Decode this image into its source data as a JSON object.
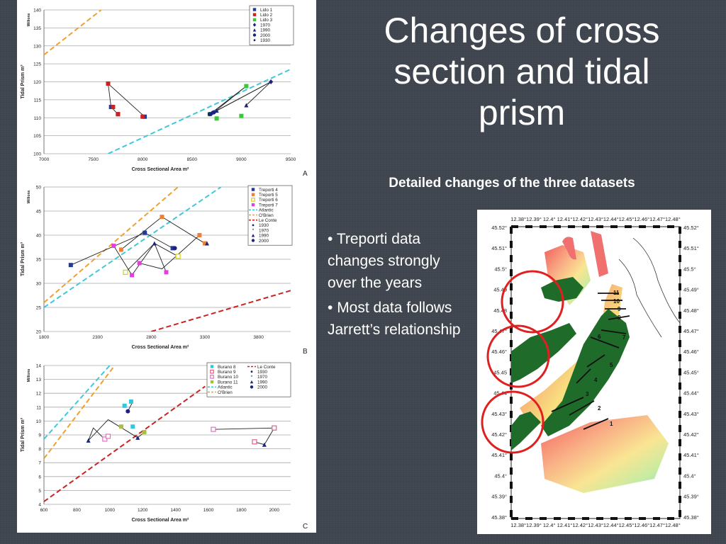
{
  "slide": {
    "title_lines": [
      "Changes of cross",
      "section and tidal",
      "prism"
    ],
    "subtitle": "Detailed changes of the three datasets",
    "bullets": [
      "Treporti data changes strongly over the years",
      "Most data follows Jarrett’s relationship"
    ]
  },
  "chart_data": [
    {
      "type": "scatter",
      "panel_label": "A",
      "xlabel": "Cross Sectional Area m²",
      "ylabel": "Tidal Prism m³",
      "yunit": "Millions",
      "xlim": [
        7000,
        9500
      ],
      "ylim": [
        100,
        140
      ],
      "xticks": [
        7000,
        7500,
        8000,
        8500,
        9000,
        9500
      ],
      "yticks": [
        100,
        105,
        110,
        115,
        120,
        125,
        130,
        135,
        140
      ],
      "grid": "horizontal",
      "legend": "top-right",
      "series": [
        {
          "name": "Lido 1",
          "color": "#1f3a9a",
          "marker": "square",
          "points": [
            [
              7650,
              119.5
            ],
            [
              7680,
              113
            ],
            [
              7750,
              111
            ],
            [
              8020,
              110.3
            ]
          ]
        },
        {
          "name": "Lido 2",
          "color": "#cc2222",
          "marker": "square",
          "points": [
            [
              7650,
              119.5
            ],
            [
              7700,
              113
            ],
            [
              7750,
              111
            ],
            [
              8000,
              110.3
            ]
          ]
        },
        {
          "name": "Lido 3",
          "color": "#33cc33",
          "marker": "square",
          "points": [
            [
              8680,
              111
            ],
            [
              8750,
              109.8
            ],
            [
              9000,
              110.5
            ],
            [
              9050,
              118.8
            ]
          ]
        },
        {
          "name": "1970",
          "color": "#1a237e",
          "marker": "diamond",
          "points": [
            [
              8700,
              111.2
            ],
            [
              9300,
              120
            ]
          ]
        },
        {
          "name": "1990",
          "color": "#1a237e",
          "marker": "triangle",
          "points": [
            [
              8750,
              112
            ],
            [
              9050,
              113.5
            ]
          ]
        },
        {
          "name": "2000",
          "color": "#1a237e",
          "marker": "circle",
          "points": [
            [
              8680,
              111
            ],
            [
              8720,
              111.5
            ]
          ]
        },
        {
          "name": "1930",
          "color": "#1a237e",
          "marker": "dot",
          "points": []
        }
      ],
      "reference_lines": [
        {
          "name": "Atlantic",
          "color": "#40c8d8",
          "points": [
            [
              7650,
              100
            ],
            [
              9500,
              123.5
            ]
          ]
        },
        {
          "name": "O'Brien",
          "color": "#f0a030",
          "points": [
            [
              7000,
              127.5
            ],
            [
              7580,
              140
            ]
          ]
        }
      ],
      "path_lines": [
        [
          [
            7650,
            119.5
          ],
          [
            7680,
            113
          ],
          [
            7750,
            111
          ]
        ],
        [
          [
            7650,
            119.5
          ],
          [
            8020,
            110.3
          ]
        ],
        [
          [
            8680,
            111
          ],
          [
            9050,
            118.8
          ],
          [
            8720,
            111.5
          ]
        ],
        [
          [
            8700,
            111.2
          ],
          [
            9300,
            120
          ],
          [
            9050,
            113.5
          ]
        ],
        [
          [
            8750,
            112
          ],
          [
            9300,
            120
          ]
        ]
      ]
    },
    {
      "type": "scatter",
      "panel_label": "B",
      "xlabel": "Cross Sectional Area m²",
      "ylabel": "Tidal Prism m³",
      "yunit": "Millions",
      "xlim": [
        1800,
        4100
      ],
      "ylim": [
        20,
        50
      ],
      "xticks": [
        1800,
        2300,
        2800,
        3300,
        3800
      ],
      "yticks": [
        20,
        25,
        30,
        35,
        40,
        45,
        50
      ],
      "grid": "horizontal",
      "legend": "top-right",
      "series": [
        {
          "name": "Treporti 4",
          "color": "#1f3a9a",
          "marker": "square",
          "points": [
            [
              2050,
              33.8
            ],
            [
              2740,
              40.5
            ],
            [
              3000,
              37.3
            ]
          ]
        },
        {
          "name": "Treporti 5",
          "color": "#f08030",
          "marker": "square",
          "points": [
            [
              2520,
              37
            ],
            [
              2900,
              43.8
            ],
            [
              3250,
              40
            ],
            [
              3300,
              38.3
            ]
          ]
        },
        {
          "name": "Treporti 6",
          "color": "#d4d020",
          "marker": "square-open",
          "points": [
            [
              2560,
              32.3
            ],
            [
              3050,
              35.6
            ]
          ]
        },
        {
          "name": "Treporti 7",
          "color": "#e040e0",
          "marker": "square",
          "points": [
            [
              2450,
              37.8
            ],
            [
              2620,
              31.7
            ],
            [
              2690,
              34.2
            ],
            [
              2940,
              32.3
            ]
          ]
        },
        {
          "name": "Atlantic",
          "color": "#40c8d8",
          "marker": "line-dash",
          "points": []
        },
        {
          "name": "O'Brien",
          "color": "#f0a030",
          "marker": "line-dash",
          "points": []
        },
        {
          "name": "Le Conte",
          "color": "#cc2222",
          "marker": "line-dash",
          "points": []
        },
        {
          "name": "1930",
          "color": "#1a237e",
          "marker": "dot",
          "points": []
        },
        {
          "name": "1970",
          "color": "#1a237e",
          "marker": "star",
          "points": []
        },
        {
          "name": "1990",
          "color": "#1a237e",
          "marker": "triangle",
          "points": [
            [
              2830,
              38.3
            ],
            [
              3320,
              38.3
            ]
          ]
        },
        {
          "name": "2000",
          "color": "#1a237e",
          "marker": "circle",
          "points": [
            [
              3020,
              37.3
            ]
          ]
        }
      ],
      "reference_lines": [
        {
          "name": "Atlantic",
          "color": "#40c8d8",
          "points": [
            [
              1800,
              25
            ],
            [
              3450,
              50
            ]
          ]
        },
        {
          "name": "O'Brien",
          "color": "#f0a030",
          "points": [
            [
              1800,
              26
            ],
            [
              3050,
              50
            ]
          ]
        },
        {
          "name": "Le Conte",
          "color": "#cc2222",
          "points": [
            [
              2800,
              20
            ],
            [
              4100,
              28.5
            ]
          ]
        }
      ],
      "path_lines": [
        [
          [
            2050,
            33.8
          ],
          [
            2740,
            40.5
          ],
          [
            3000,
            37.3
          ]
        ],
        [
          [
            2520,
            37
          ],
          [
            2900,
            43.8
          ],
          [
            3300,
            38.3
          ]
        ],
        [
          [
            2450,
            37.8
          ],
          [
            2620,
            31.7
          ],
          [
            2830,
            38.3
          ],
          [
            2940,
            32.3
          ]
        ],
        [
          [
            2560,
            32.3
          ],
          [
            2830,
            38.3
          ],
          [
            3050,
            35.6
          ]
        ],
        [
          [
            2690,
            34.2
          ],
          [
            2900,
            33
          ],
          [
            3250,
            40
          ]
        ]
      ]
    },
    {
      "type": "scatter",
      "panel_label": "C",
      "xlabel": "Cross Sectional Area m²",
      "ylabel": "Tidal Prism m³",
      "yunit": "Millions",
      "xlim": [
        600,
        2100
      ],
      "ylim": [
        4,
        14
      ],
      "xticks": [
        600,
        800,
        1000,
        1200,
        1400,
        1600,
        1800,
        2000
      ],
      "yticks": [
        4,
        5,
        6,
        7,
        8,
        9,
        10,
        11,
        12,
        13,
        14
      ],
      "grid": "horizontal",
      "legend": "top-right",
      "series": [
        {
          "name": "Burano 8",
          "color": "#30c8e0",
          "marker": "square",
          "points": [
            [
              1090,
              11.1
            ],
            [
              1130,
              11.4
            ],
            [
              1140,
              9.6
            ]
          ]
        },
        {
          "name": "Burano 9",
          "color": "#e06080",
          "marker": "square-open",
          "points": [
            [
              1880,
              8.5
            ],
            [
              2000,
              9.5
            ]
          ]
        },
        {
          "name": "Burano 10",
          "color": "#e070c0",
          "marker": "square-open",
          "points": [
            [
              1630,
              9.4
            ],
            [
              970,
              8.7
            ],
            [
              990,
              8.9
            ]
          ]
        },
        {
          "name": "Burano 11",
          "color": "#a8c040",
          "marker": "square",
          "points": [
            [
              1070,
              9.6
            ],
            [
              1210,
              9.2
            ]
          ]
        },
        {
          "name": "Atlantic",
          "color": "#40c8d8",
          "marker": "line-dash",
          "points": []
        },
        {
          "name": "O'Brien",
          "color": "#f0a030",
          "marker": "line-dash",
          "points": []
        },
        {
          "name": "Le Conte",
          "color": "#cc2222",
          "marker": "line-dash",
          "points": []
        },
        {
          "name": "1930",
          "color": "#1a237e",
          "marker": "dot",
          "points": []
        },
        {
          "name": "1970",
          "color": "#1a237e",
          "marker": "star",
          "points": []
        },
        {
          "name": "1990",
          "color": "#1a237e",
          "marker": "triangle",
          "points": [
            [
              870,
              8.6
            ],
            [
              1170,
              8.8
            ],
            [
              1940,
              8.3
            ]
          ]
        },
        {
          "name": "2000",
          "color": "#1a237e",
          "marker": "circle",
          "points": [
            [
              1110,
              10.7
            ]
          ]
        }
      ],
      "reference_lines": [
        {
          "name": "Atlantic",
          "color": "#40c8d8",
          "points": [
            [
              600,
              8.7
            ],
            [
              1000,
              14
            ]
          ]
        },
        {
          "name": "O'Brien",
          "color": "#f0a030",
          "points": [
            [
              600,
              7.3
            ],
            [
              1030,
              14
            ]
          ]
        },
        {
          "name": "Le Conte",
          "color": "#cc2222",
          "points": [
            [
              600,
              4.2
            ],
            [
              1580,
              12.5
            ]
          ]
        }
      ],
      "path_lines": [
        [
          [
            870,
            8.6
          ],
          [
            900,
            9.5
          ],
          [
            960,
            8.8
          ]
        ],
        [
          [
            990,
            10.1
          ],
          [
            1170,
            8.8
          ],
          [
            1210,
            9.2
          ]
        ],
        [
          [
            870,
            8.6
          ],
          [
            990,
            10.1
          ]
        ],
        [
          [
            1110,
            10.7
          ],
          [
            1140,
            11.4
          ]
        ],
        [
          [
            1630,
            9.4
          ],
          [
            2000,
            9.5
          ],
          [
            1940,
            8.3
          ],
          [
            1880,
            8.5
          ]
        ]
      ]
    }
  ],
  "map": {
    "top_ticks": "12.38°12.39° 12.4° 12.41°12.42°12.43°12.44°12.45°12.46°12.47°12.48°",
    "bottom_ticks": "12.38°12.39° 12.4° 12.41°12.42°12.43°12.44°12.45°12.46°12.47°12.48°",
    "left_lat": [
      "45.52°",
      "45.51°",
      "45.5°",
      "45.49",
      "45.48",
      "45.47°",
      "45.46°",
      "45.45",
      "45.44",
      "45.43°",
      "45.42°",
      "45.41°",
      "45.4°",
      "45.39°",
      "45.38°"
    ],
    "right_lat": [
      "45.52°",
      "45.51°",
      "45.5°",
      "45.49°",
      "45.48°",
      "45.47°",
      "45.46°",
      "45.45°",
      "45.44°",
      "45.43°",
      "45.42°",
      "45.41°",
      "45.4°",
      "45.39°",
      "45.38°"
    ],
    "section_labels": [
      "1",
      "2",
      "3",
      "4",
      "5",
      "6",
      "7",
      "8",
      "9",
      "10",
      "11"
    ]
  }
}
